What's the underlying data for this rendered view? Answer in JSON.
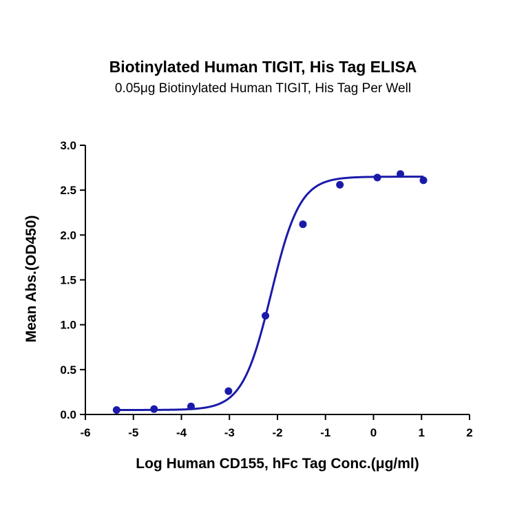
{
  "chart_data": {
    "type": "scatter",
    "title": "Biotinylated Human TIGIT, His Tag ELISA",
    "subtitle": "0.05μg Biotinylated Human TIGIT, His Tag Per Well",
    "xlabel": "Log Human CD155, hFc Tag Conc.(μg/ml)",
    "ylabel": "Mean Abs.(OD450)",
    "xlim": [
      -6,
      2
    ],
    "ylim": [
      0,
      3
    ],
    "x_ticks": [
      -6,
      -5,
      -4,
      -3,
      -2,
      -1,
      0,
      1,
      2
    ],
    "x_tick_labels": [
      "-6",
      "-5",
      "-4",
      "-3",
      "-2",
      "-1",
      "0",
      "1",
      "2"
    ],
    "y_ticks": [
      0,
      0.5,
      1,
      1.5,
      2,
      2.5,
      3
    ],
    "y_tick_labels": [
      "0.0",
      "0.5",
      "1.0",
      "1.5",
      "2.0",
      "2.5",
      "3.0"
    ],
    "grid": false,
    "legend": "none",
    "color": "#1a1aaa",
    "points": {
      "x": [
        -5.35,
        -4.57,
        -3.8,
        -3.02,
        -2.25,
        -1.47,
        -0.7,
        0.08,
        0.56,
        1.04
      ],
      "y": [
        0.05,
        0.06,
        0.09,
        0.26,
        1.1,
        2.12,
        2.56,
        2.64,
        2.68,
        2.61
      ]
    },
    "fit_curve": {
      "model": "4PL",
      "bottom": 0.05,
      "top": 2.65,
      "logEC50": -2.13,
      "hill": 1.45
    }
  }
}
